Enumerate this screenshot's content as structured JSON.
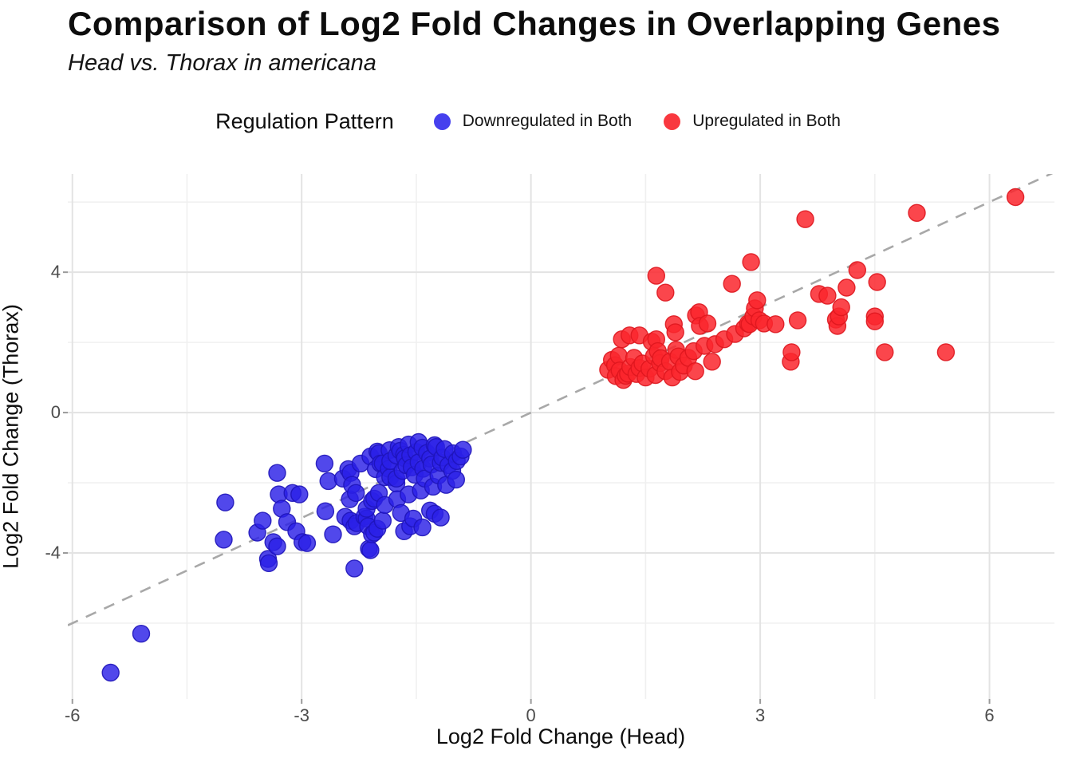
{
  "header": {
    "title": "Comparison of Log2 Fold Changes in Overlapping Genes",
    "subtitle": "Head vs. Thorax in americana"
  },
  "legend": {
    "title": "Regulation Pattern",
    "items": [
      {
        "label": "Downregulated in Both",
        "color": "#4640ee"
      },
      {
        "label": "Upregulated in Both",
        "color": "#f9383f"
      }
    ]
  },
  "colors": {
    "grid_major": "#e3e3e3",
    "grid_minor": "#f0f0f0",
    "reference_line": "#a8a8a8",
    "tick_label": "#4d4d4d",
    "blue_fill": "rgba(43,32,230,0.82)",
    "blue_stroke": "rgba(30,20,185,0.9)",
    "red_fill": "rgba(250,38,45,0.85)",
    "red_stroke": "rgba(222,22,30,0.9)"
  },
  "chart_data": {
    "type": "scatter",
    "title": "Comparison of Log2 Fold Changes in Overlapping Genes",
    "subtitle": "Head vs. Thorax in americana",
    "xlabel": "Log2 Fold Change (Head)",
    "ylabel": "Log2 Fold Change (Thorax)",
    "xlim": [
      -6.06,
      6.85
    ],
    "ylim": [
      -8.16,
      6.8
    ],
    "x_ticks": [
      -6,
      -3,
      0,
      3,
      6
    ],
    "y_ticks": [
      -4,
      0,
      4
    ],
    "x_minor_ticks": [
      -4.5,
      -1.5,
      1.5,
      4.5
    ],
    "y_minor_ticks": [
      -6,
      -2,
      2,
      6
    ],
    "grid": true,
    "legend_position": "top",
    "point_radius_px": 10.5,
    "reference_line": {
      "style": "dashed",
      "slope": 1,
      "intercept": 0
    },
    "series": [
      {
        "name": "Downregulated in Both",
        "color": "blue",
        "points": [
          [
            -5.5,
            -7.41
          ],
          [
            -5.1,
            -6.3
          ],
          [
            -4.02,
            -3.62
          ],
          [
            -4.0,
            -2.56
          ],
          [
            -3.58,
            -3.42
          ],
          [
            -3.51,
            -3.08
          ],
          [
            -3.44,
            -4.17
          ],
          [
            -3.43,
            -4.29
          ],
          [
            -3.37,
            -3.69
          ],
          [
            -3.32,
            -3.81
          ],
          [
            -3.32,
            -1.72
          ],
          [
            -3.3,
            -2.33
          ],
          [
            -3.26,
            -2.74
          ],
          [
            -3.19,
            -3.12
          ],
          [
            -3.12,
            -2.29
          ],
          [
            -3.07,
            -3.38
          ],
          [
            -3.03,
            -2.33
          ],
          [
            -2.99,
            -3.69
          ],
          [
            -2.93,
            -3.72
          ],
          [
            -2.7,
            -1.45
          ],
          [
            -2.69,
            -2.81
          ],
          [
            -2.65,
            -1.95
          ],
          [
            -2.59,
            -3.47
          ],
          [
            -2.46,
            -1.88
          ],
          [
            -2.43,
            -2.97
          ],
          [
            -2.39,
            -1.61
          ],
          [
            -2.37,
            -2.47
          ],
          [
            -2.36,
            -3.08
          ],
          [
            -2.36,
            -1.72
          ],
          [
            -2.34,
            -2.06
          ],
          [
            -2.31,
            -4.44
          ],
          [
            -2.31,
            -3.24
          ],
          [
            -2.29,
            -2.29
          ],
          [
            -2.28,
            -3.15
          ],
          [
            -2.23,
            -1.45
          ],
          [
            -2.18,
            -2.97
          ],
          [
            -2.15,
            -3.02
          ],
          [
            -2.15,
            -2.74
          ],
          [
            -2.13,
            -3.24
          ],
          [
            -2.12,
            -3.88
          ],
          [
            -2.1,
            -3.92
          ],
          [
            -2.1,
            -1.25
          ],
          [
            -2.08,
            -3.47
          ],
          [
            -2.08,
            -2.52
          ],
          [
            -2.05,
            -3.42
          ],
          [
            -2.05,
            -2.45
          ],
          [
            -2.03,
            -1.61
          ],
          [
            -2.01,
            -3.31
          ],
          [
            -2.01,
            -1.11
          ],
          [
            -1.99,
            -2.29
          ],
          [
            -1.99,
            -1.16
          ],
          [
            -1.97,
            -1.45
          ],
          [
            -1.94,
            -3.08
          ],
          [
            -1.94,
            -1.45
          ],
          [
            -1.91,
            -2.63
          ],
          [
            -1.91,
            -1.84
          ],
          [
            -1.86,
            -1.6
          ],
          [
            -1.85,
            -1.07
          ],
          [
            -1.84,
            -1.84
          ],
          [
            -1.84,
            -1.38
          ],
          [
            -1.76,
            -2.02
          ],
          [
            -1.76,
            -1.88
          ],
          [
            -1.76,
            -1.22
          ],
          [
            -1.75,
            -2.47
          ],
          [
            -1.73,
            -0.98
          ],
          [
            -1.71,
            -1.09
          ],
          [
            -1.7,
            -2.86
          ],
          [
            -1.68,
            -1.66
          ],
          [
            -1.66,
            -3.38
          ],
          [
            -1.66,
            -1.2
          ],
          [
            -1.65,
            -1.3
          ],
          [
            -1.63,
            -1.5
          ],
          [
            -1.6,
            -2.33
          ],
          [
            -1.6,
            -0.91
          ],
          [
            -1.58,
            -3.24
          ],
          [
            -1.58,
            -1.22
          ],
          [
            -1.56,
            -1.56
          ],
          [
            -1.54,
            -3.02
          ],
          [
            -1.52,
            -1.77
          ],
          [
            -1.5,
            -1.12
          ],
          [
            -1.47,
            -1.42
          ],
          [
            -1.47,
            -0.84
          ],
          [
            -1.44,
            -2.22
          ],
          [
            -1.42,
            -3.27
          ],
          [
            -1.42,
            -1.0
          ],
          [
            -1.41,
            -1.6
          ],
          [
            -1.39,
            -1.88
          ],
          [
            -1.36,
            -1.15
          ],
          [
            -1.32,
            -2.79
          ],
          [
            -1.32,
            -1.31
          ],
          [
            -1.3,
            -1.48
          ],
          [
            -1.28,
            -2.11
          ],
          [
            -1.26,
            -2.88
          ],
          [
            -1.26,
            -0.93
          ],
          [
            -1.24,
            -0.98
          ],
          [
            -1.21,
            -1.79
          ],
          [
            -1.18,
            -2.99
          ],
          [
            -1.18,
            -1.43
          ],
          [
            -1.16,
            -1.28
          ],
          [
            -1.13,
            -1.04
          ],
          [
            -1.11,
            -2.06
          ],
          [
            -1.08,
            -1.5
          ],
          [
            -1.03,
            -1.66
          ],
          [
            -1.02,
            -1.16
          ],
          [
            -0.98,
            -1.91
          ],
          [
            -0.97,
            -1.38
          ],
          [
            -0.92,
            -1.25
          ],
          [
            -0.89,
            -1.06
          ]
        ]
      },
      {
        "name": "Upregulated in Both",
        "color": "red",
        "points": [
          [
            1.01,
            1.22
          ],
          [
            1.06,
            1.5
          ],
          [
            1.1,
            1.35
          ],
          [
            1.11,
            1.04
          ],
          [
            1.15,
            1.62
          ],
          [
            1.16,
            1.2
          ],
          [
            1.19,
            2.09
          ],
          [
            1.21,
            0.93
          ],
          [
            1.24,
            1.05
          ],
          [
            1.27,
            1.11
          ],
          [
            1.29,
            2.2
          ],
          [
            1.3,
            1.3
          ],
          [
            1.35,
            1.56
          ],
          [
            1.38,
            1.1
          ],
          [
            1.42,
            2.2
          ],
          [
            1.42,
            1.27
          ],
          [
            1.46,
            1.4
          ],
          [
            1.5,
            1.0
          ],
          [
            1.55,
            1.25
          ],
          [
            1.58,
            2.02
          ],
          [
            1.61,
            1.61
          ],
          [
            1.63,
            1.07
          ],
          [
            1.64,
            3.9
          ],
          [
            1.64,
            2.09
          ],
          [
            1.66,
            1.75
          ],
          [
            1.69,
            1.41
          ],
          [
            1.7,
            1.55
          ],
          [
            1.76,
            3.42
          ],
          [
            1.76,
            1.18
          ],
          [
            1.82,
            1.45
          ],
          [
            1.85,
            1.0
          ],
          [
            1.87,
            2.52
          ],
          [
            1.89,
            2.29
          ],
          [
            1.9,
            1.79
          ],
          [
            1.93,
            1.6
          ],
          [
            1.95,
            1.16
          ],
          [
            2.0,
            1.34
          ],
          [
            2.06,
            1.56
          ],
          [
            2.13,
            1.75
          ],
          [
            2.15,
            1.18
          ],
          [
            2.16,
            2.77
          ],
          [
            2.2,
            2.86
          ],
          [
            2.21,
            2.47
          ],
          [
            2.27,
            1.9
          ],
          [
            2.31,
            2.54
          ],
          [
            2.37,
            1.45
          ],
          [
            2.41,
            1.95
          ],
          [
            2.53,
            2.09
          ],
          [
            2.63,
            3.67
          ],
          [
            2.67,
            2.24
          ],
          [
            2.79,
            2.4
          ],
          [
            2.84,
            2.54
          ],
          [
            2.86,
            2.52
          ],
          [
            2.88,
            4.29
          ],
          [
            2.91,
            2.74
          ],
          [
            2.93,
            2.97
          ],
          [
            2.96,
            3.2
          ],
          [
            2.99,
            2.63
          ],
          [
            3.05,
            2.54
          ],
          [
            3.2,
            2.52
          ],
          [
            3.4,
            1.45
          ],
          [
            3.41,
            1.72
          ],
          [
            3.49,
            2.63
          ],
          [
            3.59,
            5.51
          ],
          [
            3.77,
            3.38
          ],
          [
            3.88,
            3.33
          ],
          [
            3.99,
            2.65
          ],
          [
            4.01,
            2.47
          ],
          [
            4.03,
            2.74
          ],
          [
            4.06,
            3.0
          ],
          [
            4.13,
            3.56
          ],
          [
            4.27,
            4.06
          ],
          [
            4.5,
            2.74
          ],
          [
            4.5,
            2.6
          ],
          [
            4.53,
            3.72
          ],
          [
            4.63,
            1.72
          ],
          [
            5.05,
            5.69
          ],
          [
            5.43,
            1.72
          ],
          [
            6.34,
            6.14
          ]
        ]
      }
    ]
  }
}
